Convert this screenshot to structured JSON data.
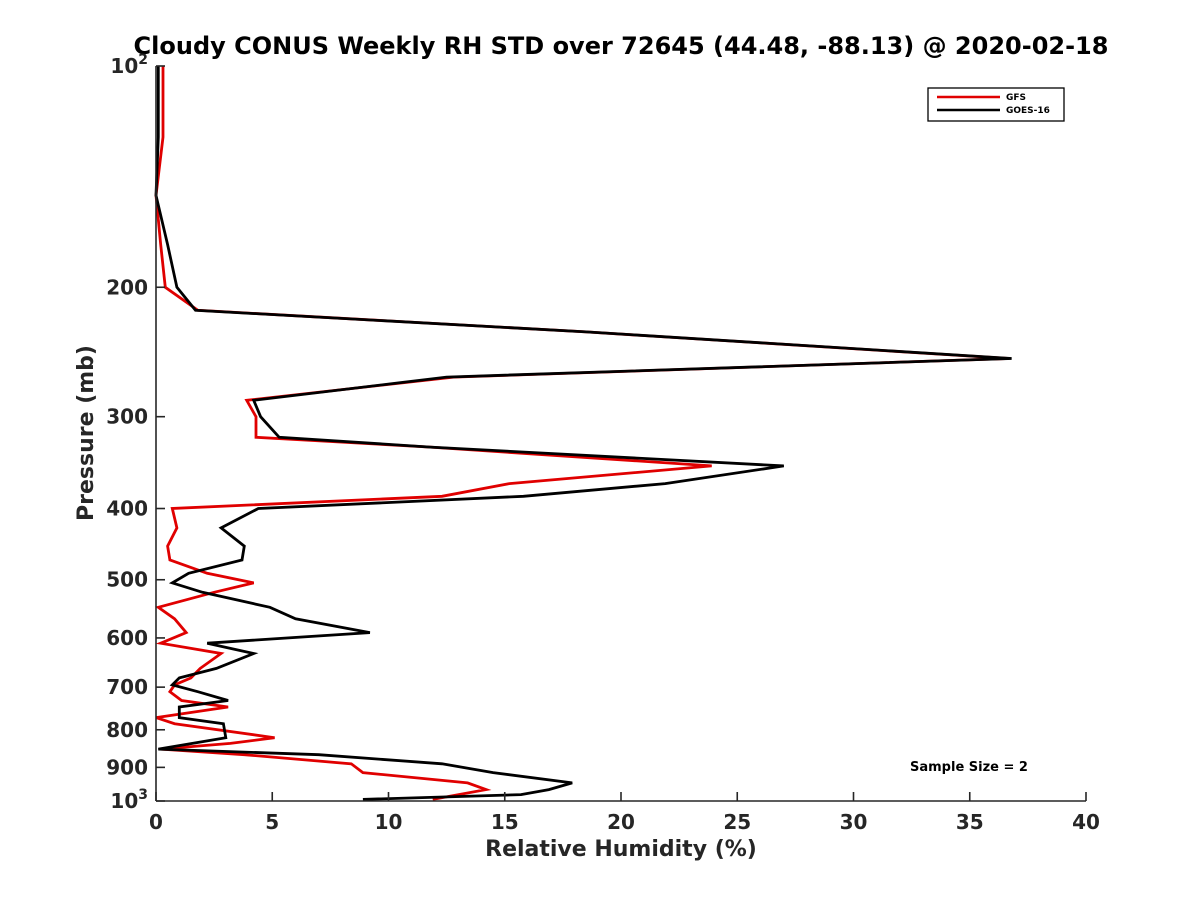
{
  "chart_data": {
    "type": "line",
    "title": "Cloudy CONUS Weekly RH STD over 72645 (44.48, -88.13) @ 2020-02-18",
    "xlabel": "Relative Humidity (%)",
    "ylabel": "Pressure (mb)",
    "xlim": [
      0,
      40
    ],
    "ylim": [
      100,
      1000
    ],
    "y_scale": "log",
    "y_reversed": true,
    "x_ticks": [
      "0",
      "5",
      "10",
      "15",
      "20",
      "25",
      "30",
      "35",
      "40"
    ],
    "y_ticks": [
      {
        "value": 100,
        "base": "10",
        "exp": "2"
      },
      {
        "value": 200,
        "label": "200"
      },
      {
        "value": 300,
        "label": "300"
      },
      {
        "value": 400,
        "label": "400"
      },
      {
        "value": 500,
        "label": "500"
      },
      {
        "value": 600,
        "label": "600"
      },
      {
        "value": 700,
        "label": "700"
      },
      {
        "value": 800,
        "label": "800"
      },
      {
        "value": 900,
        "label": "900"
      },
      {
        "value": 1000,
        "base": "10",
        "exp": "3"
      }
    ],
    "legend_position": "top-right",
    "grid": false,
    "annotation": "Sample Size = 2",
    "series": [
      {
        "name": "GFS",
        "color": "#e00000",
        "points": [
          [
            0.3,
            100
          ],
          [
            0.3,
            125
          ],
          [
            0.0,
            150
          ],
          [
            0.2,
            175
          ],
          [
            0.4,
            200
          ],
          [
            1.8,
            215
          ],
          [
            18.5,
            230
          ],
          [
            36.7,
            250
          ],
          [
            12.8,
            265
          ],
          [
            3.9,
            285
          ],
          [
            4.3,
            300
          ],
          [
            4.3,
            320
          ],
          [
            11.8,
            330
          ],
          [
            23.9,
            350
          ],
          [
            15.2,
            370
          ],
          [
            12.3,
            385
          ],
          [
            0.7,
            400
          ],
          [
            0.9,
            425
          ],
          [
            0.5,
            450
          ],
          [
            0.6,
            470
          ],
          [
            2.2,
            490
          ],
          [
            4.2,
            505
          ],
          [
            2.5,
            520
          ],
          [
            0.1,
            545
          ],
          [
            0.8,
            565
          ],
          [
            1.3,
            590
          ],
          [
            0.2,
            610
          ],
          [
            2.8,
            630
          ],
          [
            1.9,
            660
          ],
          [
            1.5,
            680
          ],
          [
            0.8,
            695
          ],
          [
            0.6,
            710
          ],
          [
            1.1,
            730
          ],
          [
            3.1,
            745
          ],
          [
            0.0,
            770
          ],
          [
            0.8,
            785
          ],
          [
            5.1,
            820
          ],
          [
            3.2,
            835
          ],
          [
            0.2,
            850
          ],
          [
            3.8,
            865
          ],
          [
            8.4,
            890
          ],
          [
            8.9,
            915
          ],
          [
            13.4,
            945
          ],
          [
            14.2,
            965
          ],
          [
            11.9,
            995
          ]
        ]
      },
      {
        "name": "GOES-16",
        "color": "#000000",
        "points": [
          [
            0.1,
            100
          ],
          [
            0.1,
            125
          ],
          [
            0.0,
            150
          ],
          [
            0.5,
            175
          ],
          [
            0.9,
            200
          ],
          [
            1.7,
            215
          ],
          [
            18.5,
            230
          ],
          [
            36.8,
            250
          ],
          [
            12.5,
            265
          ],
          [
            4.2,
            285
          ],
          [
            4.5,
            300
          ],
          [
            5.3,
            320
          ],
          [
            11.8,
            330
          ],
          [
            27.0,
            350
          ],
          [
            21.9,
            370
          ],
          [
            15.8,
            385
          ],
          [
            4.4,
            400
          ],
          [
            2.8,
            425
          ],
          [
            3.8,
            450
          ],
          [
            3.7,
            470
          ],
          [
            1.4,
            490
          ],
          [
            0.7,
            505
          ],
          [
            2.0,
            520
          ],
          [
            4.9,
            545
          ],
          [
            6.0,
            565
          ],
          [
            9.2,
            590
          ],
          [
            2.2,
            610
          ],
          [
            4.2,
            630
          ],
          [
            2.6,
            660
          ],
          [
            1.0,
            680
          ],
          [
            0.7,
            695
          ],
          [
            1.8,
            710
          ],
          [
            3.1,
            730
          ],
          [
            1.0,
            745
          ],
          [
            1.0,
            770
          ],
          [
            2.9,
            785
          ],
          [
            3.0,
            820
          ],
          [
            0.1,
            850
          ],
          [
            7.0,
            865
          ],
          [
            12.3,
            890
          ],
          [
            14.5,
            915
          ],
          [
            17.9,
            945
          ],
          [
            16.9,
            965
          ],
          [
            15.7,
            980
          ],
          [
            8.9,
            995
          ]
        ]
      }
    ]
  }
}
